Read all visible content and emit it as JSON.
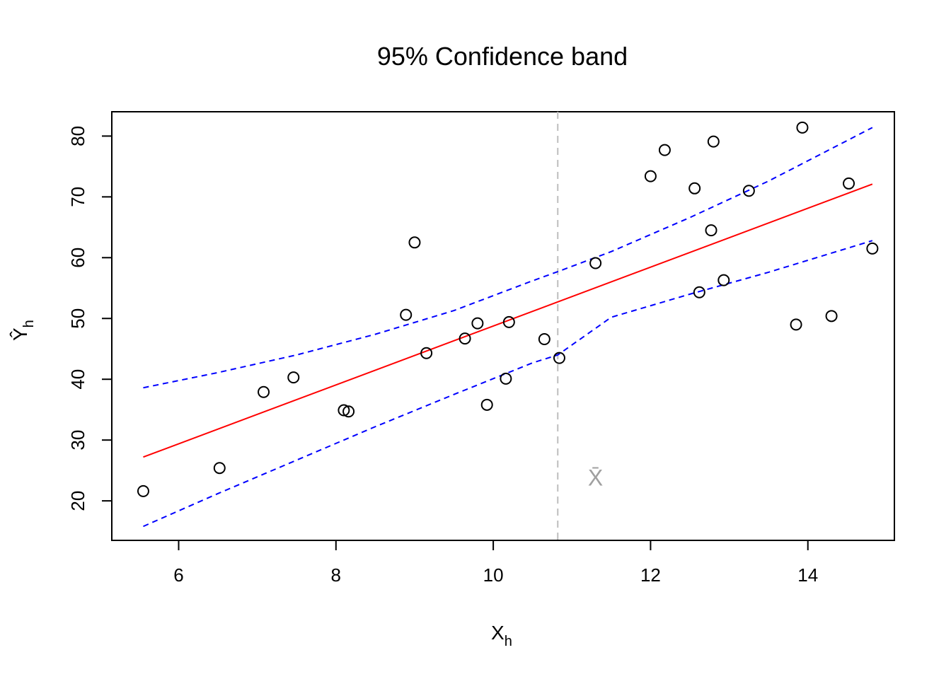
{
  "chart_data": {
    "type": "scatter",
    "title": "95% Confidence band",
    "xlabel": {
      "main": "X",
      "subscript": "h"
    },
    "ylabel": {
      "main": "Ŷ",
      "subscript": "h"
    },
    "xlim": [
      5.15,
      15.1
    ],
    "ylim": [
      13.5,
      84.0
    ],
    "xticks": [
      6,
      8,
      10,
      12,
      14
    ],
    "yticks": [
      20,
      30,
      40,
      50,
      60,
      70,
      80
    ],
    "grid": false,
    "mean_line": {
      "x": 10.82,
      "label": "X̄",
      "label_x": 11.3,
      "label_y": 22.5,
      "color": "#bebebe"
    },
    "points": [
      {
        "x": 5.55,
        "y": 21.6
      },
      {
        "x": 6.52,
        "y": 25.4
      },
      {
        "x": 7.08,
        "y": 37.9
      },
      {
        "x": 7.46,
        "y": 40.3
      },
      {
        "x": 8.1,
        "y": 34.9
      },
      {
        "x": 8.16,
        "y": 34.7
      },
      {
        "x": 8.89,
        "y": 50.6
      },
      {
        "x": 9.0,
        "y": 62.5
      },
      {
        "x": 9.15,
        "y": 44.3
      },
      {
        "x": 9.64,
        "y": 46.7
      },
      {
        "x": 9.8,
        "y": 49.2
      },
      {
        "x": 9.92,
        "y": 35.8
      },
      {
        "x": 10.16,
        "y": 40.1
      },
      {
        "x": 10.2,
        "y": 49.4
      },
      {
        "x": 10.65,
        "y": 46.6
      },
      {
        "x": 10.84,
        "y": 43.5
      },
      {
        "x": 11.3,
        "y": 59.1
      },
      {
        "x": 12.0,
        "y": 73.4
      },
      {
        "x": 12.18,
        "y": 77.7
      },
      {
        "x": 12.56,
        "y": 71.4
      },
      {
        "x": 12.62,
        "y": 54.3
      },
      {
        "x": 12.77,
        "y": 64.5
      },
      {
        "x": 12.8,
        "y": 79.1
      },
      {
        "x": 12.93,
        "y": 56.3
      },
      {
        "x": 13.25,
        "y": 71.0
      },
      {
        "x": 13.85,
        "y": 49.0
      },
      {
        "x": 13.93,
        "y": 81.4
      },
      {
        "x": 14.3,
        "y": 50.4
      },
      {
        "x": 14.52,
        "y": 72.2
      },
      {
        "x": 14.82,
        "y": 61.5
      }
    ],
    "series": [
      {
        "kind": "fit",
        "color": "#ff0000",
        "dash": false,
        "x": [
          5.55,
          14.82
        ],
        "y": [
          27.2,
          72.1
        ]
      },
      {
        "kind": "upper",
        "color": "#0000ff",
        "dash": true,
        "x": [
          5.55,
          6.5,
          7.5,
          8.5,
          9.5,
          10.5,
          10.82,
          11.5,
          12.5,
          13.5,
          14.82
        ],
        "y": [
          38.6,
          41.1,
          44.0,
          47.4,
          51.3,
          56.2,
          57.7,
          61.0,
          66.6,
          72.6,
          81.4
        ]
      },
      {
        "kind": "lower",
        "color": "#0000ff",
        "dash": true,
        "x": [
          5.55,
          6.5,
          7.5,
          8.5,
          9.5,
          10.5,
          10.82,
          11.5,
          12.5,
          13.5,
          14.82
        ],
        "y": [
          15.8,
          21.2,
          26.7,
          32.2,
          37.5,
          42.7,
          44.0,
          50.2,
          54.0,
          57.6,
          62.8
        ]
      }
    ]
  }
}
